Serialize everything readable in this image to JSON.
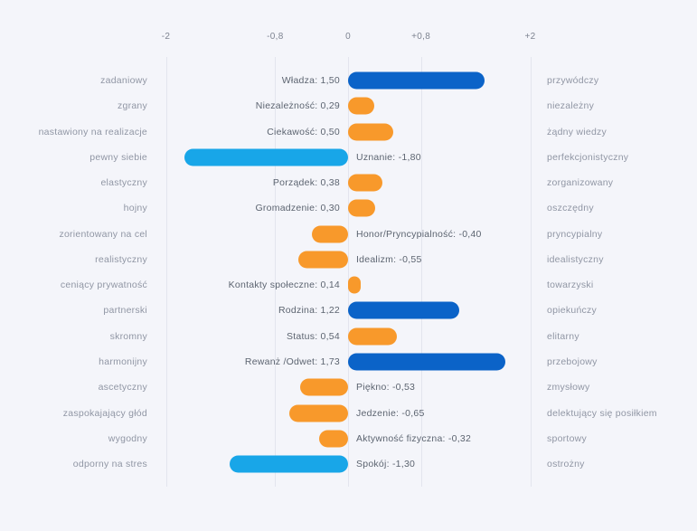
{
  "colors": {
    "background": "#F4F5FA",
    "gridline": "#E3E5EE",
    "axis_label": "#7E8491",
    "trait_label": "#9096A4",
    "value_label": "#5C6470",
    "bar_blue": "#0B63C8",
    "bar_cyan": "#18A6E8",
    "bar_orange": "#F8992B"
  },
  "chart_data": {
    "type": "bar",
    "orientation": "horizontal",
    "title": "",
    "xlabel": "",
    "ylabel": "",
    "x_range": [
      -2,
      2
    ],
    "x_ticks": [
      {
        "label": "-2",
        "value": -2.0
      },
      {
        "label": "-0,8",
        "value": -0.8
      },
      {
        "label": "0",
        "value": 0.0
      },
      {
        "label": "+0,8",
        "value": 0.8
      },
      {
        "label": "+2",
        "value": 2.0
      }
    ],
    "grid": true,
    "legend": false,
    "rows": [
      {
        "left": "zadaniowy",
        "motive": "Władza",
        "value": 1.5,
        "value_text": "Władza: 1,50",
        "right": "przywódczy",
        "color_key": "bar_blue"
      },
      {
        "left": "zgrany",
        "motive": "Niezależność",
        "value": 0.29,
        "value_text": "Niezależność: 0,29",
        "right": "niezależny",
        "color_key": "bar_orange"
      },
      {
        "left": "nastawiony na realizacje",
        "motive": "Ciekawość",
        "value": 0.5,
        "value_text": "Ciekawość: 0,50",
        "right": "żądny wiedzy",
        "color_key": "bar_orange"
      },
      {
        "left": "pewny siebie",
        "motive": "Uznanie",
        "value": -1.8,
        "value_text": "Uznanie: -1,80",
        "right": "perfekcjonistyczny",
        "color_key": "bar_cyan"
      },
      {
        "left": "elastyczny",
        "motive": "Porządek",
        "value": 0.38,
        "value_text": "Porządek: 0,38",
        "right": "zorganizowany",
        "color_key": "bar_orange"
      },
      {
        "left": "hojny",
        "motive": "Gromadzenie",
        "value": 0.3,
        "value_text": "Gromadzenie: 0,30",
        "right": "oszczędny",
        "color_key": "bar_orange"
      },
      {
        "left": "zorientowany na cel",
        "motive": "Honor/Pryncypialność",
        "value": -0.4,
        "value_text": "Honor/Pryncypialność: -0,40",
        "right": "pryncypialny",
        "color_key": "bar_orange"
      },
      {
        "left": "realistyczny",
        "motive": "Idealizm",
        "value": -0.55,
        "value_text": "Idealizm: -0,55",
        "right": "idealistyczny",
        "color_key": "bar_orange"
      },
      {
        "left": "ceniący prywatność",
        "motive": "Kontakty społeczne",
        "value": 0.14,
        "value_text": "Kontakty społeczne: 0,14",
        "right": "towarzyski",
        "color_key": "bar_orange"
      },
      {
        "left": "partnerski",
        "motive": "Rodzina",
        "value": 1.22,
        "value_text": "Rodzina: 1,22",
        "right": "opiekuńczy",
        "color_key": "bar_blue"
      },
      {
        "left": "skromny",
        "motive": "Status",
        "value": 0.54,
        "value_text": "Status: 0,54",
        "right": "elitarny",
        "color_key": "bar_orange"
      },
      {
        "left": "harmonijny",
        "motive": "Rewanż /Odwet",
        "value": 1.73,
        "value_text": "Rewanż /Odwet: 1,73",
        "right": "przebojowy",
        "color_key": "bar_blue"
      },
      {
        "left": "ascetyczny",
        "motive": "Piękno",
        "value": -0.53,
        "value_text": "Piękno: -0,53",
        "right": "zmysłowy",
        "color_key": "bar_orange"
      },
      {
        "left": "zaspokajający głód",
        "motive": "Jedzenie",
        "value": -0.65,
        "value_text": "Jedzenie: -0,65",
        "right": "delektujący się posiłkiem",
        "color_key": "bar_orange"
      },
      {
        "left": "wygodny",
        "motive": "Aktywność fizyczna",
        "value": -0.32,
        "value_text": "Aktywność fizyczna: -0,32",
        "right": "sportowy",
        "color_key": "bar_orange"
      },
      {
        "left": "odporny na stres",
        "motive": "Spokój",
        "value": -1.3,
        "value_text": "Spokój: -1,30",
        "right": "ostrożny",
        "color_key": "bar_cyan"
      }
    ]
  }
}
